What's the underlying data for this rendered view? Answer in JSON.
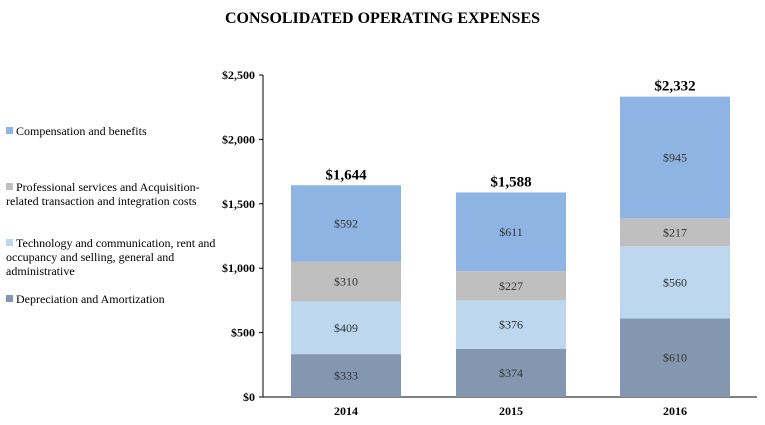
{
  "chart_data": {
    "type": "bar",
    "stacked": true,
    "title": "CONSOLIDATED OPERATING EXPENSES",
    "categories": [
      "2014",
      "2015",
      "2016"
    ],
    "series": [
      {
        "name": "Depreciation and Amortization",
        "color": "#8497B0",
        "values": [
          333,
          374,
          610
        ],
        "labels": [
          "$333",
          "$374",
          "$610"
        ]
      },
      {
        "name": "Technology and communication, rent and occupancy and selling, general and administrative",
        "color": "#BDD7EE",
        "values": [
          409,
          376,
          560
        ],
        "labels": [
          "$409",
          "$376",
          "$560"
        ]
      },
      {
        "name": "Professional services and Acquisition-related transaction and integration costs",
        "color": "#BFBFBF",
        "values": [
          310,
          227,
          217
        ],
        "labels": [
          "$310",
          "$227",
          "$217"
        ]
      },
      {
        "name": "Compensation and benefits",
        "color": "#8DB4E2",
        "values": [
          592,
          611,
          945
        ],
        "labels": [
          "$592",
          "$611",
          "$945"
        ]
      }
    ],
    "totals": [
      1644,
      1588,
      2332
    ],
    "total_labels": [
      "$1,644",
      "$1,588",
      "$2,332"
    ],
    "ylim": [
      0,
      2500
    ],
    "yticks": [
      0,
      500,
      1000,
      1500,
      2000,
      2500
    ],
    "ytick_labels": [
      "$0",
      "$500",
      "$1,000",
      "$1,500",
      "$2,000",
      "$2,500"
    ],
    "grid": false,
    "legend_placement": "left"
  }
}
